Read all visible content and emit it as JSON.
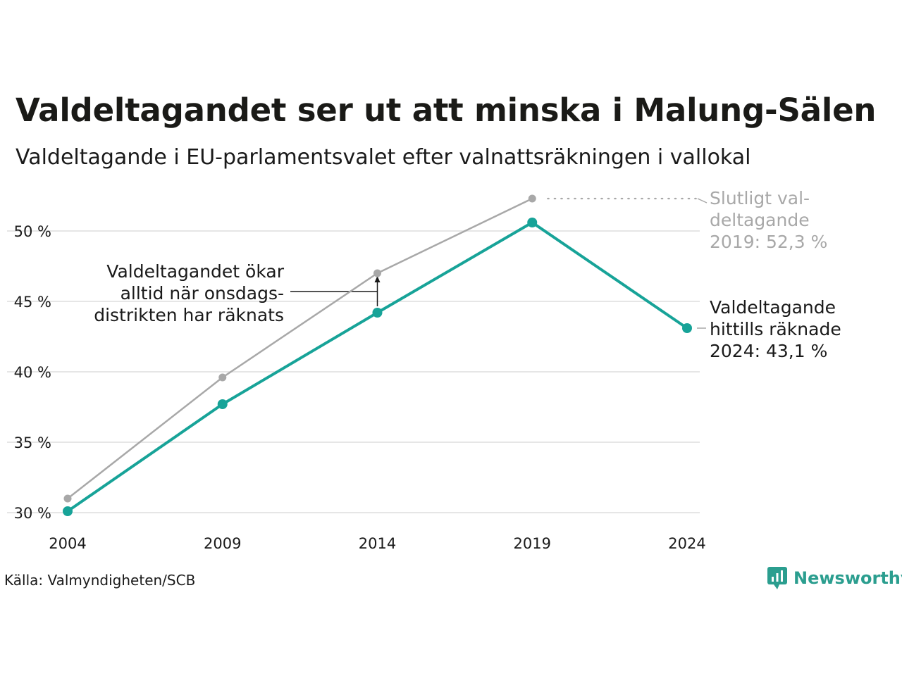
{
  "title": "Valdeltagandet ser ut att minska i Malung-Sälen",
  "subtitle": "Valdeltagande i EU-parlamentsvalet efter valnattsräkningen i vallokal",
  "source": "Källa: Valmyndigheten/SCB",
  "brand": "Newsworthy",
  "colors": {
    "counted": "#17a398",
    "final": "#a8a8a8",
    "grid": "#e6e6e6",
    "brand": "#2b9e8f"
  },
  "chart_data": {
    "type": "line",
    "x": [
      2004,
      2009,
      2014,
      2019,
      2024
    ],
    "x_tick_labels": [
      "2004",
      "2009",
      "2014",
      "2019",
      "2024"
    ],
    "ylim": [
      30,
      50
    ],
    "y_ticks": [
      30,
      35,
      40,
      45,
      50
    ],
    "y_tick_labels": [
      "30 %",
      "35 %",
      "40 %",
      "45 %",
      "50 %"
    ],
    "grid": true,
    "series": [
      {
        "key": "final",
        "values": [
          31.0,
          39.6,
          47.0,
          52.3,
          null
        ]
      },
      {
        "key": "counted",
        "values": [
          30.1,
          37.7,
          44.2,
          50.6,
          43.1
        ]
      }
    ],
    "annotations": {
      "final": [
        "Slutligt val-",
        "deltagande",
        "2019: 52,3 %"
      ],
      "counted": [
        "Valdeltagande",
        "hittills räknade",
        "2024: 43,1 %"
      ],
      "gap": [
        "Valdeltagandet ökar",
        "alltid när onsdags-",
        "distrikten har räknats"
      ]
    }
  }
}
